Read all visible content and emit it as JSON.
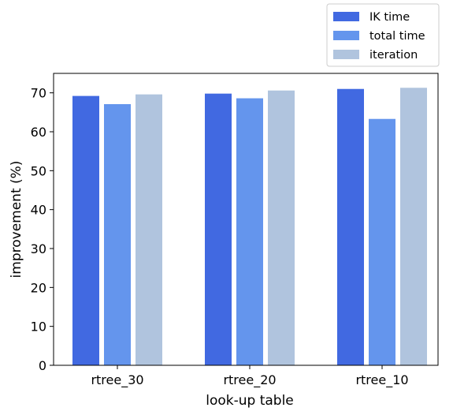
{
  "chart_data": {
    "type": "bar",
    "title": "",
    "xlabel": "look-up table",
    "ylabel": "improvement (%)",
    "categories": [
      "rtree_30",
      "rtree_20",
      "rtree_10"
    ],
    "series": [
      {
        "name": "IK time",
        "values": [
          69.2,
          69.8,
          71.0
        ],
        "color": "#4169e1"
      },
      {
        "name": "total time",
        "values": [
          67.1,
          68.6,
          63.3
        ],
        "color": "#6495ed"
      },
      {
        "name": "iteration",
        "values": [
          69.6,
          70.6,
          71.3
        ],
        "color": "#b0c4de"
      }
    ],
    "ylim": [
      0,
      75
    ],
    "yticks": [
      0,
      10,
      20,
      30,
      40,
      50,
      60,
      70
    ],
    "grid": false,
    "legend_position": "above-top-right"
  }
}
